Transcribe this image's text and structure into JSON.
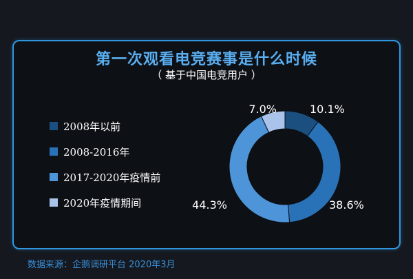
{
  "chart_data": {
    "type": "pie",
    "title": "第一次观看电竞赛事是什么时候",
    "subtitle": "（ 基于中国电竞用户 ）",
    "legend_position": "left",
    "slices": [
      {
        "name": "2008年以前",
        "value": 10.1,
        "label": "10.1%",
        "color": "#1b4f7f"
      },
      {
        "name": "2008-2016年",
        "value": 38.6,
        "label": "38.6%",
        "color": "#2a72b8"
      },
      {
        "name": "2017-2020年疫情前",
        "value": 44.3,
        "label": "44.3%",
        "color": "#4e94d8"
      },
      {
        "name": "2020年疫情期间",
        "value": 7.0,
        "label": "7.0%",
        "color": "#a9c3ea"
      }
    ]
  },
  "source": "数据来源：企鹅调研平台 2020年3月"
}
